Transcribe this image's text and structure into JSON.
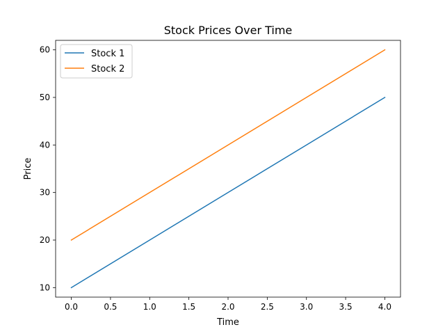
{
  "chart_data": {
    "type": "line",
    "title": "Stock Prices Over Time",
    "xlabel": "Time",
    "ylabel": "Price",
    "x": [
      0,
      1,
      2,
      3,
      4
    ],
    "series": [
      {
        "name": "Stock 1",
        "color": "#1f77b4",
        "values": [
          10,
          20,
          30,
          40,
          50
        ]
      },
      {
        "name": "Stock 2",
        "color": "#ff7f0e",
        "values": [
          20,
          30,
          40,
          50,
          60
        ]
      }
    ],
    "xlim": [
      -0.2,
      4.2
    ],
    "ylim": [
      8,
      62
    ],
    "xticks": [
      0,
      0.5,
      1,
      1.5,
      2,
      2.5,
      3,
      3.5,
      4
    ],
    "xtick_labels": [
      "0.0",
      "0.5",
      "1.0",
      "1.5",
      "2.0",
      "2.5",
      "3.0",
      "3.5",
      "4.0"
    ],
    "yticks": [
      10,
      20,
      30,
      40,
      50,
      60
    ],
    "ytick_labels": [
      "10",
      "20",
      "30",
      "40",
      "50",
      "60"
    ],
    "grid": false,
    "legend_position": "top-left"
  }
}
